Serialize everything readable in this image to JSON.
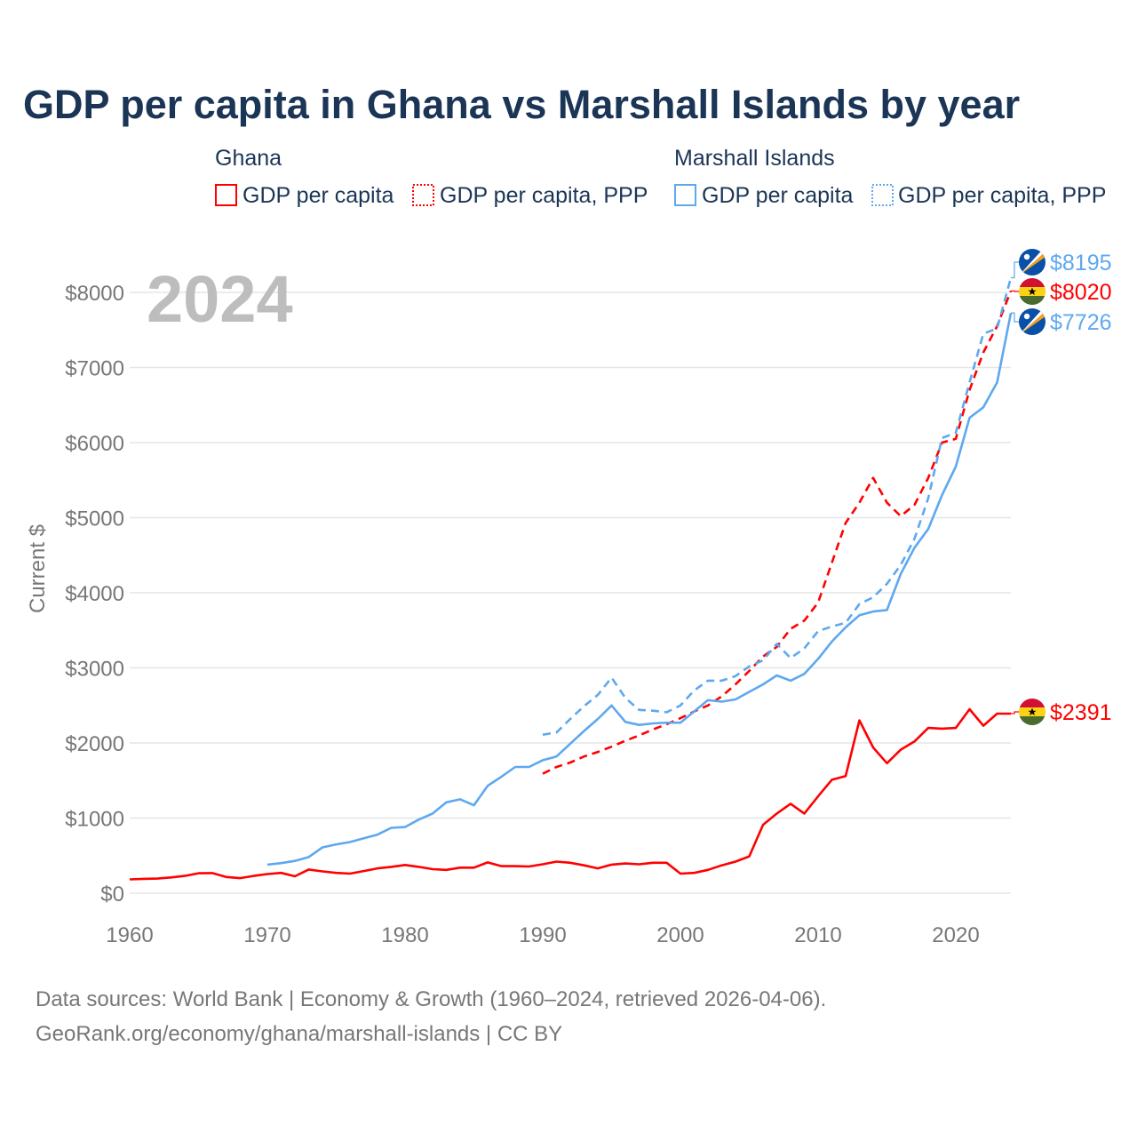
{
  "chart_data": {
    "type": "line",
    "title": "GDP per capita in Ghana vs Marshall Islands by year",
    "ylabel": "Current $",
    "xlabel": "",
    "xlim": [
      1960,
      2024
    ],
    "ylim": [
      0,
      8500
    ],
    "x_ticks": [
      "1960",
      "1970",
      "1980",
      "1990",
      "2000",
      "2010",
      "2020"
    ],
    "y_ticks": [
      "$0",
      "$1000",
      "$2000",
      "$3000",
      "$4000",
      "$5000",
      "$6000",
      "$7000",
      "$8000"
    ],
    "y_tick_values": [
      0,
      1000,
      2000,
      3000,
      4000,
      5000,
      6000,
      7000,
      8000
    ],
    "x_tick_values": [
      1960,
      1970,
      1980,
      1990,
      2000,
      2010,
      2020
    ],
    "grid": true,
    "year_watermark": "2024",
    "legend": {
      "placement": "top",
      "groups": [
        {
          "country": "Ghana",
          "items": [
            "GDP per capita",
            "GDP per capita, PPP"
          ]
        },
        {
          "country": "Marshall Islands",
          "items": [
            "GDP per capita",
            "GDP per capita, PPP"
          ]
        }
      ]
    },
    "series": [
      {
        "name": "Ghana GDP per capita",
        "color": "#ff0000",
        "dash": false,
        "start": 1960,
        "end_label": "$2391",
        "flag": "ghana",
        "values": [
          183,
          190,
          194,
          210,
          230,
          265,
          268,
          215,
          200,
          230,
          255,
          270,
          225,
          315,
          290,
          270,
          260,
          295,
          330,
          350,
          375,
          350,
          320,
          310,
          340,
          340,
          410,
          360,
          360,
          355,
          385,
          420,
          405,
          370,
          330,
          380,
          395,
          385,
          405,
          405,
          260,
          270,
          310,
          370,
          420,
          490,
          910,
          1060,
          1190,
          1060,
          1290,
          1510,
          1560,
          2300,
          1940,
          1730,
          1910,
          2020,
          2200,
          2190,
          2200,
          2450,
          2230,
          2390,
          2391
        ]
      },
      {
        "name": "Ghana GDP per capita, PPP",
        "color": "#ff0000",
        "dash": true,
        "start": 1990,
        "end_label": "$8020",
        "flag": "ghana",
        "values": [
          1590,
          1680,
          1740,
          1820,
          1880,
          1950,
          2030,
          2100,
          2180,
          2250,
          2330,
          2420,
          2500,
          2620,
          2780,
          2960,
          3150,
          3280,
          3520,
          3630,
          3870,
          4400,
          4930,
          5200,
          5530,
          5200,
          5020,
          5170,
          5530,
          6000,
          6050,
          6700,
          7200,
          7550,
          8020
        ]
      },
      {
        "name": "Marshall Islands GDP per capita",
        "color": "#5ea8ef",
        "dash": false,
        "start": 1970,
        "end_label": "$7726",
        "flag": "marshall",
        "values": [
          380,
          400,
          430,
          480,
          610,
          650,
          680,
          730,
          780,
          870,
          880,
          980,
          1060,
          1210,
          1250,
          1170,
          1430,
          1550,
          1680,
          1680,
          1770,
          1820,
          1990,
          2160,
          2320,
          2500,
          2280,
          2240,
          2260,
          2270,
          2270,
          2420,
          2570,
          2550,
          2580,
          2680,
          2780,
          2900,
          2830,
          2920,
          3120,
          3350,
          3540,
          3700,
          3750,
          3770,
          4250,
          4600,
          4850,
          5300,
          5680,
          6330,
          6470,
          6800,
          7726
        ]
      },
      {
        "name": "Marshall Islands GDP per capita, PPP",
        "color": "#5ea8ef",
        "dash": true,
        "start": 1990,
        "end_label": "$8195",
        "flag": "marshall",
        "values": [
          2110,
          2140,
          2320,
          2490,
          2640,
          2870,
          2600,
          2440,
          2430,
          2410,
          2500,
          2700,
          2830,
          2830,
          2890,
          3020,
          3100,
          3320,
          3130,
          3260,
          3490,
          3550,
          3600,
          3850,
          3940,
          4120,
          4370,
          4720,
          5260,
          6060,
          6130,
          6800,
          7450,
          7520,
          8195
        ]
      }
    ]
  },
  "footer": {
    "line1": "Data sources: World Bank | Economy & Growth (1960–2024, retrieved 2026-04-06).",
    "line2": "GeoRank.org/economy/ghana/marshall-islands | CC BY"
  }
}
